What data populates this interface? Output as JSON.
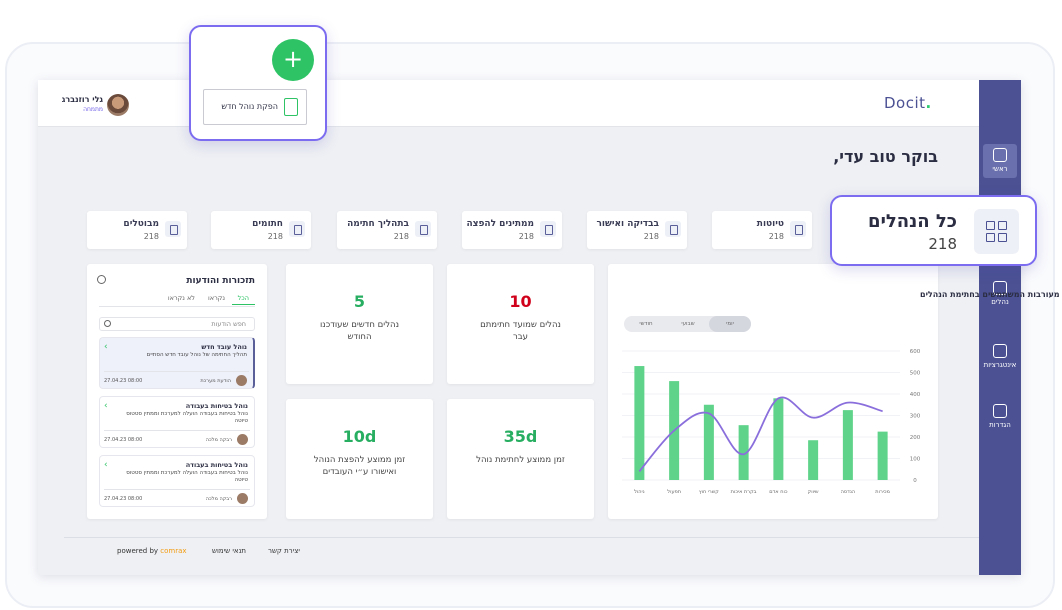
{
  "header": {
    "logo": "Docit",
    "user_name": "גלי רוזנברג",
    "user_role": "מתמחה"
  },
  "sidebar": {
    "items": [
      "ראשי",
      "נהלים",
      "אינטגרציות",
      "הגדרות"
    ]
  },
  "popup": {
    "button": "הפקת נוהל חדש"
  },
  "highlight": {
    "title": "כל הנהלים",
    "count": 218
  },
  "greeting": "בוקר טוב עדי,",
  "status_cards": [
    {
      "label": "טיוטות",
      "count": 218
    },
    {
      "label": "בבדיקה ואישור",
      "count": 218
    },
    {
      "label": "ממתינים להפצה",
      "count": 218
    },
    {
      "label": "בתהליך חתימה",
      "count": 218
    },
    {
      "label": "חתומים",
      "count": 218
    },
    {
      "label": "מבוטלים",
      "count": 218
    }
  ],
  "notifications": {
    "title": "תזכורות והודעות",
    "tabs": [
      "הכל",
      "נקראו",
      "לא נקראו"
    ],
    "search": "חפש הודעות",
    "items": [
      {
        "title": "נוהל עובד חדש",
        "text": "תהליך החתימה של נוהל עובד חדש הסתיים",
        "date": "27.04.23 08:00",
        "sender": "הודעת מערכת"
      },
      {
        "title": "נוהל בטיחות בעבודה",
        "text": "נוהל בטיחות בעבודה הועלה למערכת וממתין סטטוס טיוטה",
        "date": "27.04.23 08:00",
        "sender": "רבקה מלכה"
      },
      {
        "title": "נוהל בטיחות בעבודה",
        "text": "נוהל בטיחות בעבודה הועלה למערכת וממתין סטטוס טיוטה",
        "date": "27.04.23 08:00",
        "sender": "רבקה מלכה"
      }
    ]
  },
  "kpis": [
    {
      "value": 10,
      "label": "נהלים שמועד חתימתם עבר",
      "color": "#d0021b"
    },
    {
      "value": 5,
      "label": "נהלים חדשים שעודכנו החודש",
      "color": "#27ae60"
    },
    {
      "value": "35d",
      "label": "זמן ממוצע לחתימת נוהל",
      "color": "#27ae60"
    },
    {
      "value": "10d",
      "label": "זמן ממוצע להפצת הנוהל ואישורו ע״י העובדים",
      "color": "#27ae60"
    }
  ],
  "chart_panel": {
    "toggle": [
      "יומי",
      "שבועי",
      "חודשי"
    ]
  },
  "chart_data": {
    "type": "bar",
    "title": "מעורבות המשתמשים בחתימת הנהלים",
    "categories": [
      "ניהול",
      "תפעול",
      "קשרי חוץ",
      "בקרת איכות",
      "כוח אדם",
      "שיווק",
      "הנדסה",
      "מכירות"
    ],
    "series": [
      {
        "type": "bar",
        "color": "#5fd38a",
        "values": [
          530,
          460,
          350,
          255,
          380,
          185,
          325,
          225
        ]
      },
      {
        "type": "line",
        "color": "#8a6fdc",
        "values": [
          40,
          230,
          310,
          120,
          380,
          290,
          360,
          320
        ]
      }
    ],
    "ylim": [
      0,
      600
    ],
    "yticks": [
      0,
      100,
      200,
      300,
      400,
      500,
      600
    ],
    "grid": true
  },
  "footer": {
    "powered_by": "powered by",
    "brand": "comrax",
    "links": [
      "תנאי שימוש",
      "יצירת קשר"
    ]
  }
}
